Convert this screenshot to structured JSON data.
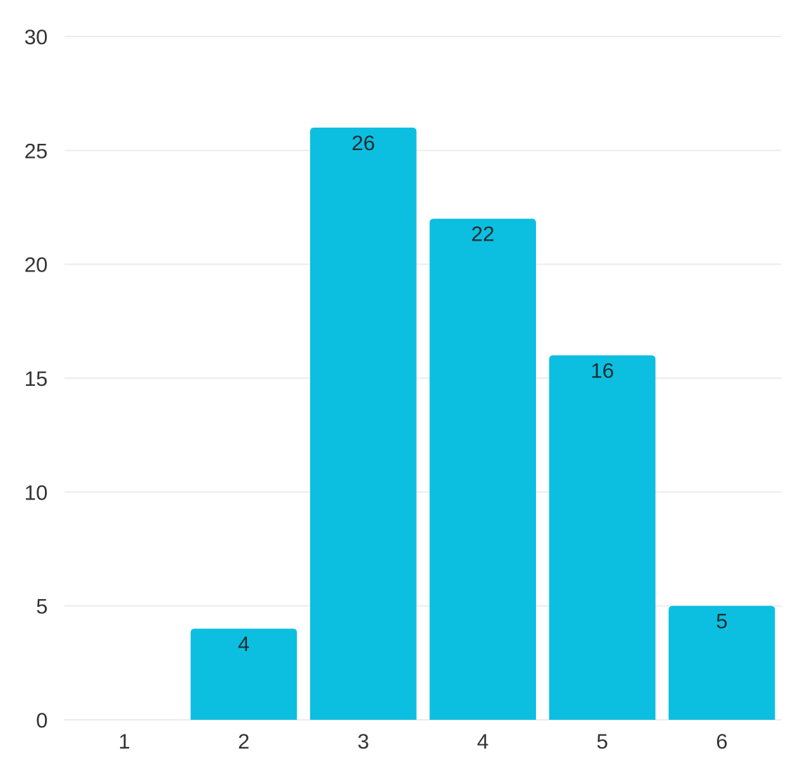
{
  "chart_data": {
    "type": "bar",
    "categories": [
      "1",
      "2",
      "3",
      "4",
      "5",
      "6"
    ],
    "values": [
      0,
      4,
      26,
      22,
      16,
      5
    ],
    "data_labels": [
      "",
      "4",
      "26",
      "22",
      "16",
      "5"
    ],
    "ylim": [
      0,
      30
    ],
    "yticks": [
      "0",
      "5",
      "10",
      "15",
      "20",
      "25",
      "30"
    ],
    "ytick_values": [
      0,
      5,
      10,
      15,
      20,
      25,
      30
    ],
    "grid": true,
    "bar_color": "#0cbfe0",
    "title": "",
    "xlabel": "",
    "ylabel": ""
  }
}
